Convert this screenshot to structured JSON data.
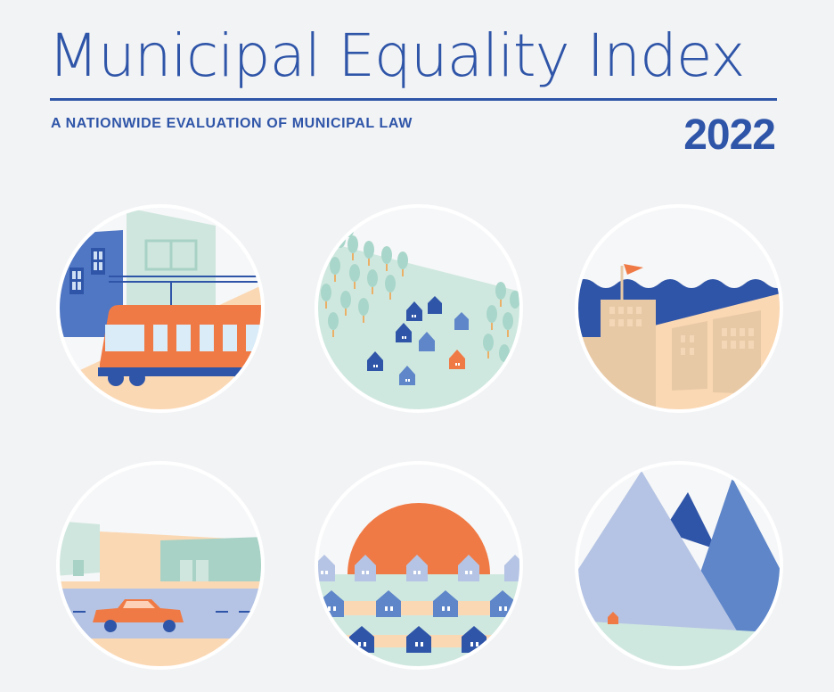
{
  "header": {
    "title": "Municipal Equality Index",
    "subtitle": "A NATIONWIDE EVALUATION OF MUNICIPAL LAW",
    "year": "2022"
  },
  "colors": {
    "brand_blue": "#2f55a8",
    "orange": "#f07a45",
    "light_blue": "#5e86c9",
    "mint": "#cfe8df",
    "sand": "#fbd8b4",
    "background": "#f2f3f5"
  },
  "illustrations": [
    {
      "icon": "city-tram-icon"
    },
    {
      "icon": "suburban-neighborhood-icon"
    },
    {
      "icon": "coastal-buildings-icon"
    },
    {
      "icon": "highway-car-icon"
    },
    {
      "icon": "sunset-houses-icon"
    },
    {
      "icon": "mountains-icon"
    }
  ]
}
